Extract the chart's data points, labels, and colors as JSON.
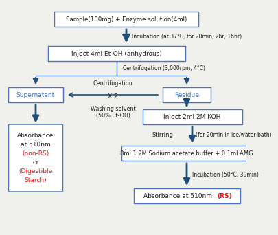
{
  "bg_color": "#f0f0ec",
  "box_edge_color": "#4472c4",
  "box_fill_color": "#ffffff",
  "arrow_color": "#1f4e79",
  "text_color_black": "#1a1a1a",
  "text_color_blue": "#4472c4",
  "text_color_red": "#ee1111",
  "sample_text": "Sample(100mg) + Enzyme solution(4ml)",
  "etoh_text": "Inject 4ml Et-OH (anhydrous)",
  "supernatant_text": "Supernatant",
  "residue_text": "Residue",
  "koh_text": "Inject 2ml 2M KOH",
  "sodium_text": "8ml 1.2M Sodium acetate buffer + 0.1ml AMG",
  "abs_right_text": "Absorbance at 510nm ",
  "abs_right_red": "(RS)",
  "incubation_label": "Incubation (at 37°C, for 20min, 2hr, 16hr)",
  "centrifugation_label": "Centrifugation (3,000rpm, 4°C)",
  "centrifugation_x2_label1": "Centrifugation",
  "centrifugation_x2_label2": "X 2",
  "centrifugation_x2_label3": "Washing solvent\n(50% Et-OH)",
  "stirring_label": "Stirring",
  "stirring_detail": "(for 20min in ice/water bath)",
  "incubation2_label": "Incubation (50°C, 30min)",
  "abs_left_lines": [
    "Absorbance",
    "at 510nm",
    "(non-RS)",
    "or",
    "(Digestible",
    "Starch)"
  ],
  "abs_left_colors": [
    "black",
    "black",
    "red",
    "black",
    "red",
    "red"
  ]
}
